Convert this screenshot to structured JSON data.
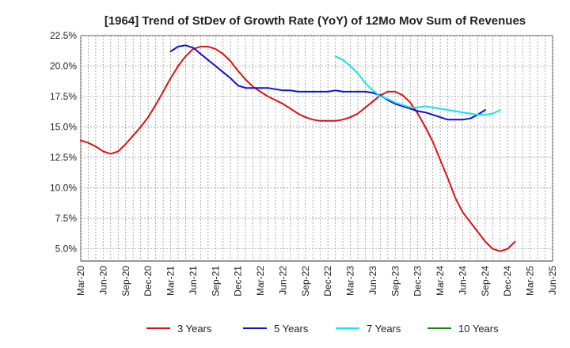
{
  "chart_data": {
    "type": "line",
    "title": "[1964]  Trend of StDev of Growth Rate (YoY) of 12Mo Mov Sum of Revenues",
    "xlabel": "",
    "ylabel": "",
    "x_ticks": [
      "Mar-20",
      "Jun-20",
      "Sep-20",
      "Dec-20",
      "Mar-21",
      "Jun-21",
      "Sep-21",
      "Dec-21",
      "Mar-22",
      "Jun-22",
      "Sep-22",
      "Dec-22",
      "Mar-23",
      "Jun-23",
      "Sep-23",
      "Dec-23",
      "Mar-24",
      "Jun-24",
      "Sep-24",
      "Dec-24",
      "Mar-25",
      "Jun-25"
    ],
    "y_ticks": [
      "5.0%",
      "7.5%",
      "10.0%",
      "12.5%",
      "15.0%",
      "17.5%",
      "20.0%",
      "22.5%"
    ],
    "ylim": [
      4.0,
      22.5
    ],
    "y_tick_values": [
      5.0,
      7.5,
      10.0,
      12.5,
      15.0,
      17.5,
      20.0,
      22.5
    ],
    "grid": true,
    "legend_position": "bottom",
    "series": [
      {
        "name": "3 Years",
        "color": "#dd1111",
        "start_index": 0,
        "values": [
          13.9,
          13.7,
          13.4,
          13.0,
          12.8,
          13.0,
          13.6,
          14.3,
          15.0,
          15.8,
          16.8,
          17.9,
          19.0,
          20.0,
          20.8,
          21.4,
          21.6,
          21.6,
          21.4,
          21.0,
          20.4,
          19.6,
          18.9,
          18.3,
          17.9,
          17.5,
          17.2,
          16.9,
          16.5,
          16.1,
          15.8,
          15.6,
          15.5,
          15.5,
          15.5,
          15.6,
          15.8,
          16.1,
          16.6,
          17.1,
          17.6,
          17.9,
          17.9,
          17.6,
          17.0,
          16.1,
          15.0,
          13.8,
          12.3,
          10.8,
          9.2,
          8.0,
          7.2,
          6.4,
          5.6,
          5.0,
          4.8,
          5.0,
          5.6
        ]
      },
      {
        "name": "5 Years",
        "color": "#1010cc",
        "start_index": 12,
        "values": [
          21.2,
          21.6,
          21.7,
          21.5,
          21.0,
          20.5,
          20.0,
          19.5,
          19.0,
          18.4,
          18.2,
          18.2,
          18.2,
          18.2,
          18.1,
          18.0,
          18.0,
          17.9,
          17.9,
          17.9,
          17.9,
          17.9,
          18.0,
          17.9,
          17.9,
          17.9,
          17.9,
          17.8,
          17.6,
          17.2,
          16.9,
          16.7,
          16.5,
          16.3,
          16.2,
          16.0,
          15.8,
          15.6,
          15.6,
          15.6,
          15.7,
          16.0,
          16.4
        ]
      },
      {
        "name": "7 Years",
        "color": "#11e5ee",
        "start_index": 34,
        "values": [
          20.8,
          20.5,
          20.0,
          19.4,
          18.6,
          18.0,
          17.5,
          17.3,
          17.0,
          16.8,
          16.6,
          16.6,
          16.7,
          16.6,
          16.5,
          16.4,
          16.3,
          16.2,
          16.1,
          16.0,
          16.0,
          16.1,
          16.4
        ]
      },
      {
        "name": "10 Years",
        "color": "#118811",
        "start_index": 0,
        "values": []
      }
    ]
  }
}
